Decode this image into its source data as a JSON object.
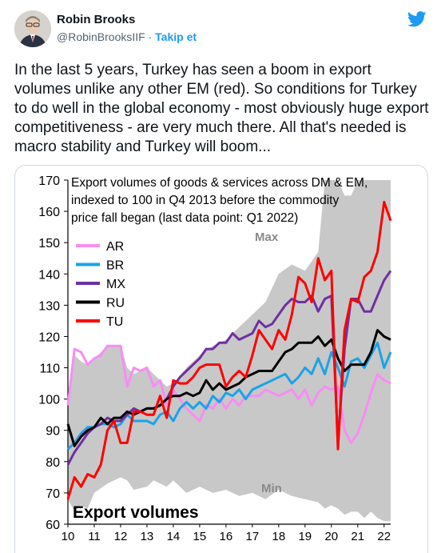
{
  "tweet": {
    "author_name": "Robin Brooks",
    "handle": "@RobinBrooksIIF",
    "separator": "·",
    "follow_label": "Takip et",
    "text": "In the last 5 years, Turkey has seen a boom in export volumes unlike any other EM (red). So conditions for Turkey to do well in the global economy - most obviously huge export competitiveness - are very much there. All that's needed is macro stability and Turkey will boom...",
    "icons": [
      "twitter-bird-icon",
      "avatar"
    ],
    "accent_color": "#1d9bf0"
  },
  "chart_data": {
    "type": "line",
    "title": "Export volumes of goods & services across DM & EM, indexed to 100 in Q4 2013  before the commodity price fall began (last data point: Q1 2022)",
    "title_lines": [
      "Export volumes of goods & services across DM & EM,",
      "indexed to 100 in Q4 2013  before the commodity",
      "price fall began (last data point: Q1 2022)"
    ],
    "corner_label": "Export volumes",
    "band_label_max": "Max",
    "band_label_min": "Min",
    "xlabel": "",
    "ylabel": "",
    "ylim": [
      60,
      170
    ],
    "y_ticks": [
      60,
      70,
      80,
      90,
      100,
      110,
      120,
      130,
      140,
      150,
      160,
      170
    ],
    "x_ticks": [
      "10",
      "11",
      "12",
      "13",
      "14",
      "15",
      "16",
      "17",
      "18",
      "19",
      "20",
      "21",
      "22"
    ],
    "x_range": [
      2010,
      2022.25
    ],
    "grid": false,
    "legend_position": "upper-left",
    "band": {
      "x": [
        2010.0,
        2010.25,
        2010.5,
        2010.75,
        2011.0,
        2011.5,
        2012.0,
        2012.25,
        2012.5,
        2013.0,
        2013.25,
        2013.75,
        2014.0,
        2014.5,
        2015.0,
        2015.5,
        2016.0,
        2016.5,
        2017.0,
        2017.5,
        2018.0,
        2018.5,
        2019.0,
        2019.5,
        2019.75,
        2020.0,
        2020.25,
        2020.5,
        2020.75,
        2021.0,
        2021.25,
        2021.5,
        2021.75,
        2022.0,
        2022.25
      ],
      "max": [
        98,
        114,
        112,
        111,
        113,
        117,
        117,
        110,
        108,
        110,
        108,
        104,
        105,
        110,
        114,
        117,
        119,
        123,
        127,
        131,
        140,
        143,
        141,
        147,
        170,
        170,
        170,
        165,
        165,
        170,
        170,
        170,
        170,
        170,
        170
      ],
      "min": [
        68,
        64,
        66,
        65,
        70,
        73,
        75,
        74,
        71,
        72,
        74,
        72,
        74,
        70,
        72,
        70,
        71,
        69,
        70,
        68,
        71,
        69,
        68,
        67,
        65,
        66,
        65,
        63,
        64,
        64,
        62,
        64,
        62,
        61,
        61
      ]
    },
    "series": [
      {
        "name": "AR",
        "color": "#f78df5",
        "x": [
          2010.0,
          2010.25,
          2010.5,
          2010.75,
          2011.0,
          2011.25,
          2011.5,
          2011.75,
          2012.0,
          2012.25,
          2012.5,
          2012.75,
          2013.0,
          2013.25,
          2013.5,
          2013.75,
          2014.0,
          2014.25,
          2014.5,
          2014.75,
          2015.0,
          2015.25,
          2015.5,
          2015.75,
          2016.0,
          2016.25,
          2016.5,
          2016.75,
          2017.0,
          2017.25,
          2017.5,
          2017.75,
          2018.0,
          2018.25,
          2018.5,
          2018.75,
          2019.0,
          2019.25,
          2019.5,
          2019.75,
          2020.0,
          2020.25,
          2020.5,
          2020.75,
          2021.0,
          2021.25,
          2021.5,
          2021.75,
          2022.0,
          2022.25
        ],
        "values": [
          98,
          116,
          115,
          111,
          113,
          114,
          117,
          117,
          117,
          104,
          110,
          109,
          110,
          104,
          106,
          98,
          103,
          100,
          97,
          95,
          93,
          98,
          97,
          100,
          97,
          100,
          98,
          101,
          101,
          101,
          103,
          102,
          101,
          102,
          103,
          100,
          103,
          98,
          102,
          104,
          103,
          104,
          90,
          86,
          89,
          95,
          102,
          108,
          106,
          105
        ]
      },
      {
        "name": "BR",
        "color": "#1aa3e6",
        "x": [
          2010.0,
          2010.25,
          2010.5,
          2010.75,
          2011.0,
          2011.25,
          2011.5,
          2011.75,
          2012.0,
          2012.25,
          2012.5,
          2012.75,
          2013.0,
          2013.25,
          2013.5,
          2013.75,
          2014.0,
          2014.25,
          2014.5,
          2014.75,
          2015.0,
          2015.25,
          2015.5,
          2015.75,
          2016.0,
          2016.25,
          2016.5,
          2016.75,
          2017.0,
          2017.25,
          2017.5,
          2017.75,
          2018.0,
          2018.25,
          2018.5,
          2018.75,
          2019.0,
          2019.25,
          2019.5,
          2019.75,
          2020.0,
          2020.25,
          2020.5,
          2020.75,
          2021.0,
          2021.25,
          2021.5,
          2021.75,
          2022.0,
          2022.25
        ],
        "values": [
          84,
          86,
          89,
          91,
          91,
          92,
          92,
          91,
          92,
          95,
          93,
          93,
          93,
          92,
          95,
          96,
          93,
          97,
          99,
          97,
          99,
          97,
          101,
          99,
          102,
          101,
          103,
          100,
          103,
          104,
          105,
          106,
          107,
          108,
          105,
          107,
          110,
          108,
          113,
          108,
          115,
          110,
          104,
          112,
          113,
          110,
          114,
          118,
          110,
          115
        ]
      },
      {
        "name": "MX",
        "color": "#7030a0",
        "x": [
          2010.0,
          2010.25,
          2010.5,
          2010.75,
          2011.0,
          2011.25,
          2011.5,
          2011.75,
          2012.0,
          2012.25,
          2012.5,
          2012.75,
          2013.0,
          2013.25,
          2013.5,
          2013.75,
          2014.0,
          2014.25,
          2014.5,
          2014.75,
          2015.0,
          2015.25,
          2015.5,
          2015.75,
          2016.0,
          2016.25,
          2016.5,
          2016.75,
          2017.0,
          2017.25,
          2017.5,
          2017.75,
          2018.0,
          2018.25,
          2018.5,
          2018.75,
          2019.0,
          2019.25,
          2019.5,
          2019.75,
          2020.0,
          2020.25,
          2020.5,
          2020.75,
          2021.0,
          2021.25,
          2021.5,
          2021.75,
          2022.0,
          2022.25
        ],
        "values": [
          79,
          83,
          86,
          89,
          91,
          92,
          94,
          93,
          93,
          95,
          97,
          96,
          97,
          97,
          98,
          100,
          104,
          107,
          109,
          111,
          113,
          116,
          116,
          118,
          118,
          121,
          119,
          120,
          121,
          125,
          123,
          124,
          127,
          130,
          132,
          131,
          131,
          133,
          128,
          132,
          133,
          86,
          116,
          132,
          132,
          128,
          128,
          133,
          138,
          141
        ]
      },
      {
        "name": "RU",
        "color": "#000000",
        "x": [
          2010.0,
          2010.25,
          2010.5,
          2010.75,
          2011.0,
          2011.25,
          2011.5,
          2011.75,
          2012.0,
          2012.25,
          2012.5,
          2012.75,
          2013.0,
          2013.25,
          2013.5,
          2013.75,
          2014.0,
          2014.25,
          2014.5,
          2014.75,
          2015.0,
          2015.25,
          2015.5,
          2015.75,
          2016.0,
          2016.25,
          2016.5,
          2016.75,
          2017.0,
          2017.25,
          2017.5,
          2017.75,
          2018.0,
          2018.25,
          2018.5,
          2018.75,
          2019.0,
          2019.25,
          2019.5,
          2019.75,
          2020.0,
          2020.25,
          2020.5,
          2020.75,
          2021.0,
          2021.25,
          2021.5,
          2021.75,
          2022.0,
          2022.25
        ],
        "values": [
          92,
          85,
          88,
          90,
          91,
          94,
          92,
          94,
          94,
          96,
          95,
          96,
          97,
          97,
          98,
          100,
          101,
          101,
          102,
          101,
          102,
          106,
          103,
          105,
          103,
          104,
          105,
          107,
          108,
          109,
          109,
          109,
          112,
          115,
          116,
          118,
          118,
          118,
          120,
          117,
          119,
          113,
          109,
          111,
          111,
          111,
          115,
          122,
          120,
          119
        ]
      },
      {
        "name": "TU",
        "color": "#ff0000",
        "x": [
          2010.0,
          2010.25,
          2010.5,
          2010.75,
          2011.0,
          2011.25,
          2011.5,
          2011.75,
          2012.0,
          2012.25,
          2012.5,
          2012.75,
          2013.0,
          2013.25,
          2013.5,
          2013.75,
          2014.0,
          2014.25,
          2014.5,
          2014.75,
          2015.0,
          2015.25,
          2015.5,
          2015.75,
          2016.0,
          2016.25,
          2016.5,
          2016.75,
          2017.0,
          2017.25,
          2017.5,
          2017.75,
          2018.0,
          2018.25,
          2018.5,
          2018.75,
          2019.0,
          2019.25,
          2019.5,
          2019.75,
          2020.0,
          2020.25,
          2020.5,
          2020.75,
          2021.0,
          2021.25,
          2021.5,
          2021.75,
          2022.0,
          2022.25
        ],
        "values": [
          68,
          75,
          72,
          76,
          75,
          79,
          90,
          93,
          86,
          86,
          96,
          96,
          95,
          95,
          101,
          94,
          106,
          105,
          105,
          107,
          110,
          111,
          111,
          111,
          104,
          107,
          109,
          107,
          114,
          122,
          119,
          116,
          122,
          119,
          127,
          139,
          137,
          131,
          145,
          138,
          141,
          84,
          122,
          132,
          131,
          139,
          141,
          147,
          163,
          157
        ]
      }
    ]
  }
}
